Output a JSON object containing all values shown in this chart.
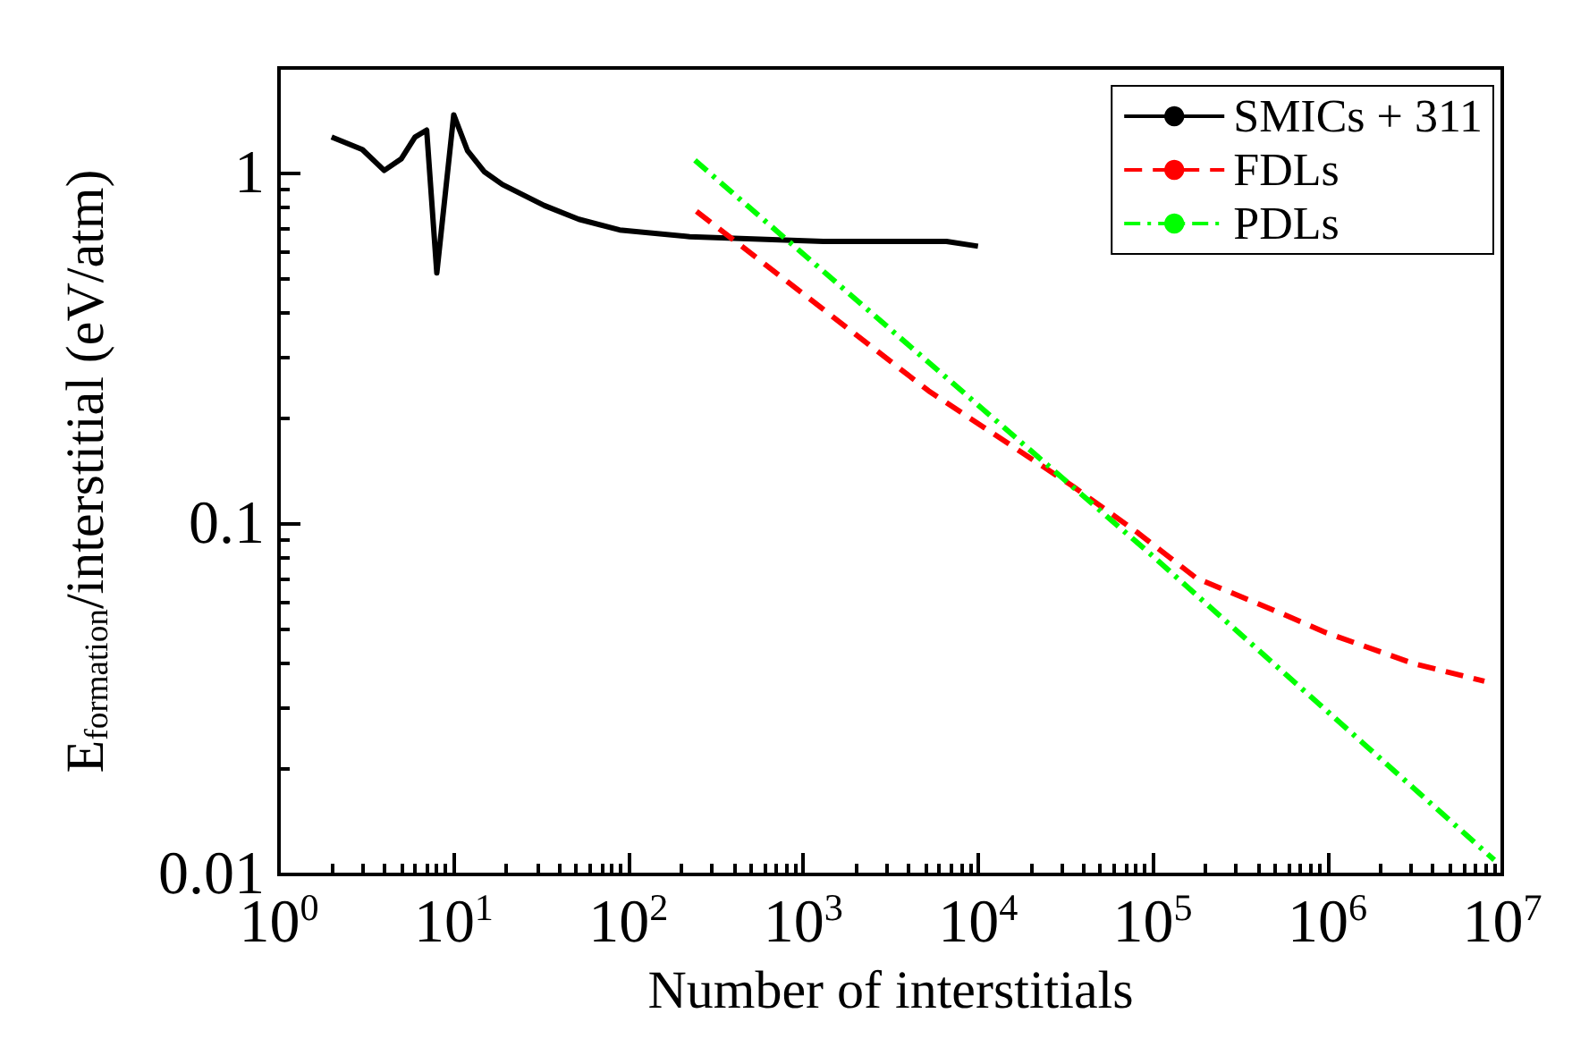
{
  "chart_data": {
    "type": "line",
    "xlabel": "Number of interstitials",
    "ylabel": "E$_{formation}$/interstitial (eV/atm)",
    "log": "xy",
    "xlim": [
      1,
      10000000
    ],
    "ylim": [
      0.01,
      2
    ],
    "xticks": [
      {
        "value": 1,
        "label": "10$^{0}$"
      },
      {
        "value": 10,
        "label": "10$^{1}$"
      },
      {
        "value": 100,
        "label": "10$^{2}$"
      },
      {
        "value": 1000,
        "label": "10$^{3}$"
      },
      {
        "value": 10000,
        "label": "10$^{4}$"
      },
      {
        "value": 100000,
        "label": "10$^{5}$"
      },
      {
        "value": 1000000,
        "label": "10$^{6}$"
      },
      {
        "value": 10000000,
        "label": "10$^{7}$"
      }
    ],
    "yticks": [
      0.01,
      0.1,
      1
    ],
    "grid": false,
    "legend": "top right",
    "marker": "none",
    "series": [
      {
        "name": "SMICs + 311",
        "color": "#000000",
        "line_style": "solid",
        "x": [
          2,
          3,
          4,
          5,
          6,
          7,
          8,
          10,
          12,
          15,
          19,
          33,
          52,
          89,
          224,
          1300,
          6600,
          10000
        ],
        "values": [
          1.27,
          1.17,
          1.02,
          1.1,
          1.27,
          1.33,
          0.52,
          1.47,
          1.16,
          1.01,
          0.93,
          0.81,
          0.74,
          0.69,
          0.66,
          0.64,
          0.64,
          0.62
        ]
      },
      {
        "name": "FDLs",
        "color": "#ff0000",
        "line_style": "dashed",
        "x": [
          245,
          5200,
          35000,
          83000,
          178000,
          525000,
          977000,
          3090000,
          7900000
        ],
        "values": [
          0.78,
          0.24,
          0.128,
          0.094,
          0.07,
          0.056,
          0.049,
          0.04,
          0.0356
        ]
      },
      {
        "name": "PDLs",
        "color": "#00ff00",
        "line_style": "dashdot",
        "x": [
          240,
          100000,
          9000000
        ],
        "values": [
          1.09,
          0.081,
          0.011
        ]
      }
    ]
  }
}
